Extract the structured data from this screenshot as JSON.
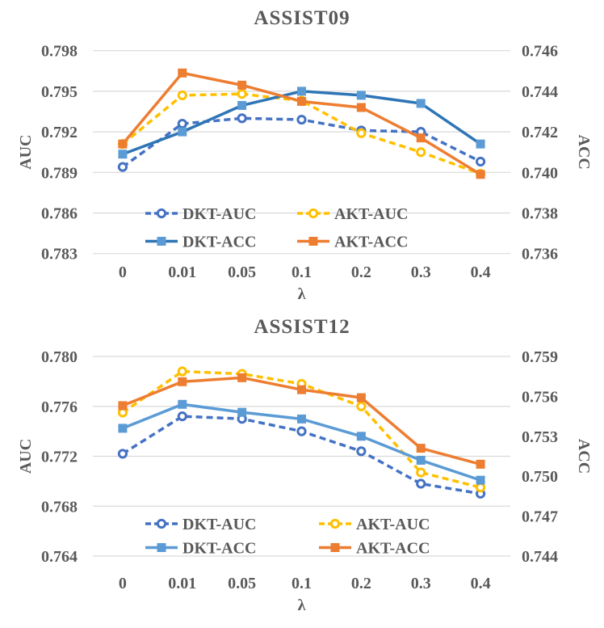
{
  "figure": {
    "lambda_label": "λ"
  },
  "colors": {
    "dkt_auc": "#4472C4",
    "akt_auc": "#FFC000",
    "dkt_acc_top_line": "#2E75B6",
    "dkt_acc_marker": "#5B9BD5",
    "akt_acc": "#ED7D31",
    "gridline": "#D9D9D9",
    "text": "#595959"
  },
  "chart_data": [
    {
      "type": "line",
      "title": "ASSIST09",
      "categories": [
        "0",
        "0.01",
        "0.05",
        "0.1",
        "0.2",
        "0.3",
        "0.4"
      ],
      "xlabel": "λ",
      "left_axis": {
        "label": "AUC",
        "min": 0.783,
        "max": 0.798,
        "ticks": [
          "0.798",
          "0.795",
          "0.792",
          "0.789",
          "0.786",
          "0.783"
        ]
      },
      "right_axis": {
        "label": "ACC",
        "min": 0.736,
        "max": 0.746,
        "ticks": [
          "0.746",
          "0.744",
          "0.742",
          "0.740",
          "0.738",
          "0.736"
        ]
      },
      "grid": true,
      "legend_position": "inside-bottom",
      "series": [
        {
          "name": "DKT-AUC",
          "axis": "left",
          "style": "dashed",
          "marker": "circle-open",
          "color": "#4472C4",
          "values": [
            0.7894,
            0.7926,
            0.793,
            0.7929,
            0.7921,
            0.792,
            0.7898
          ]
        },
        {
          "name": "AKT-AUC",
          "axis": "left",
          "style": "dashed",
          "marker": "circle-open",
          "color": "#FFC000",
          "values": [
            0.7911,
            0.7947,
            0.7948,
            0.7943,
            0.7919,
            0.7905,
            0.7889
          ]
        },
        {
          "name": "DKT-ACC",
          "axis": "right",
          "style": "solid",
          "marker": "square",
          "color": "#2E75B6",
          "marker_color": "#5B9BD5",
          "values": [
            0.7409,
            0.742,
            0.7433,
            0.744,
            0.7438,
            0.7434,
            0.7414
          ]
        },
        {
          "name": "AKT-ACC",
          "axis": "right",
          "style": "solid",
          "marker": "square",
          "color": "#ED7D31",
          "values": [
            0.7414,
            0.7449,
            0.7443,
            0.7435,
            0.7432,
            0.7417,
            0.7399
          ]
        }
      ],
      "legend": {
        "rows": [
          [
            "DKT-AUC",
            "AKT-AUC"
          ],
          [
            "DKT-ACC",
            "AKT-ACC"
          ]
        ]
      }
    },
    {
      "type": "line",
      "title": "ASSIST12",
      "categories": [
        "0",
        "0.01",
        "0.05",
        "0.1",
        "0.2",
        "0.3",
        "0.4"
      ],
      "xlabel": "λ",
      "left_axis": {
        "label": "AUC",
        "min": 0.764,
        "max": 0.78,
        "ticks": [
          "0.780",
          "0.776",
          "0.772",
          "0.768",
          "0.764"
        ]
      },
      "right_axis": {
        "label": "ACC",
        "min": 0.744,
        "max": 0.759,
        "ticks": [
          "0.759",
          "0.756",
          "0.753",
          "0.750",
          "0.747",
          "0.744"
        ]
      },
      "grid": true,
      "legend_position": "inside-bottom",
      "series": [
        {
          "name": "DKT-AUC",
          "axis": "left",
          "style": "dashed",
          "marker": "circle-open",
          "color": "#4472C4",
          "values": [
            0.7722,
            0.7752,
            0.775,
            0.774,
            0.7724,
            0.7698,
            0.769
          ]
        },
        {
          "name": "AKT-AUC",
          "axis": "left",
          "style": "dashed",
          "marker": "circle-open",
          "color": "#FFC000",
          "values": [
            0.7755,
            0.7788,
            0.7786,
            0.7778,
            0.776,
            0.7707,
            0.7695
          ]
        },
        {
          "name": "DKT-ACC",
          "axis": "right",
          "style": "solid",
          "marker": "square",
          "color": "#5B9BD5",
          "marker_color": "#5B9BD5",
          "values": [
            0.7536,
            0.7554,
            0.7548,
            0.7543,
            0.753,
            0.7512,
            0.7497
          ]
        },
        {
          "name": "AKT-ACC",
          "axis": "right",
          "style": "solid",
          "marker": "square",
          "color": "#ED7D31",
          "values": [
            0.7553,
            0.7571,
            0.7574,
            0.7565,
            0.7559,
            0.7521,
            0.7509
          ]
        }
      ],
      "legend": {
        "rows": [
          [
            "DKT-AUC",
            "AKT-AUC"
          ],
          [
            "DKT-ACC",
            "AKT-ACC"
          ]
        ]
      }
    }
  ]
}
